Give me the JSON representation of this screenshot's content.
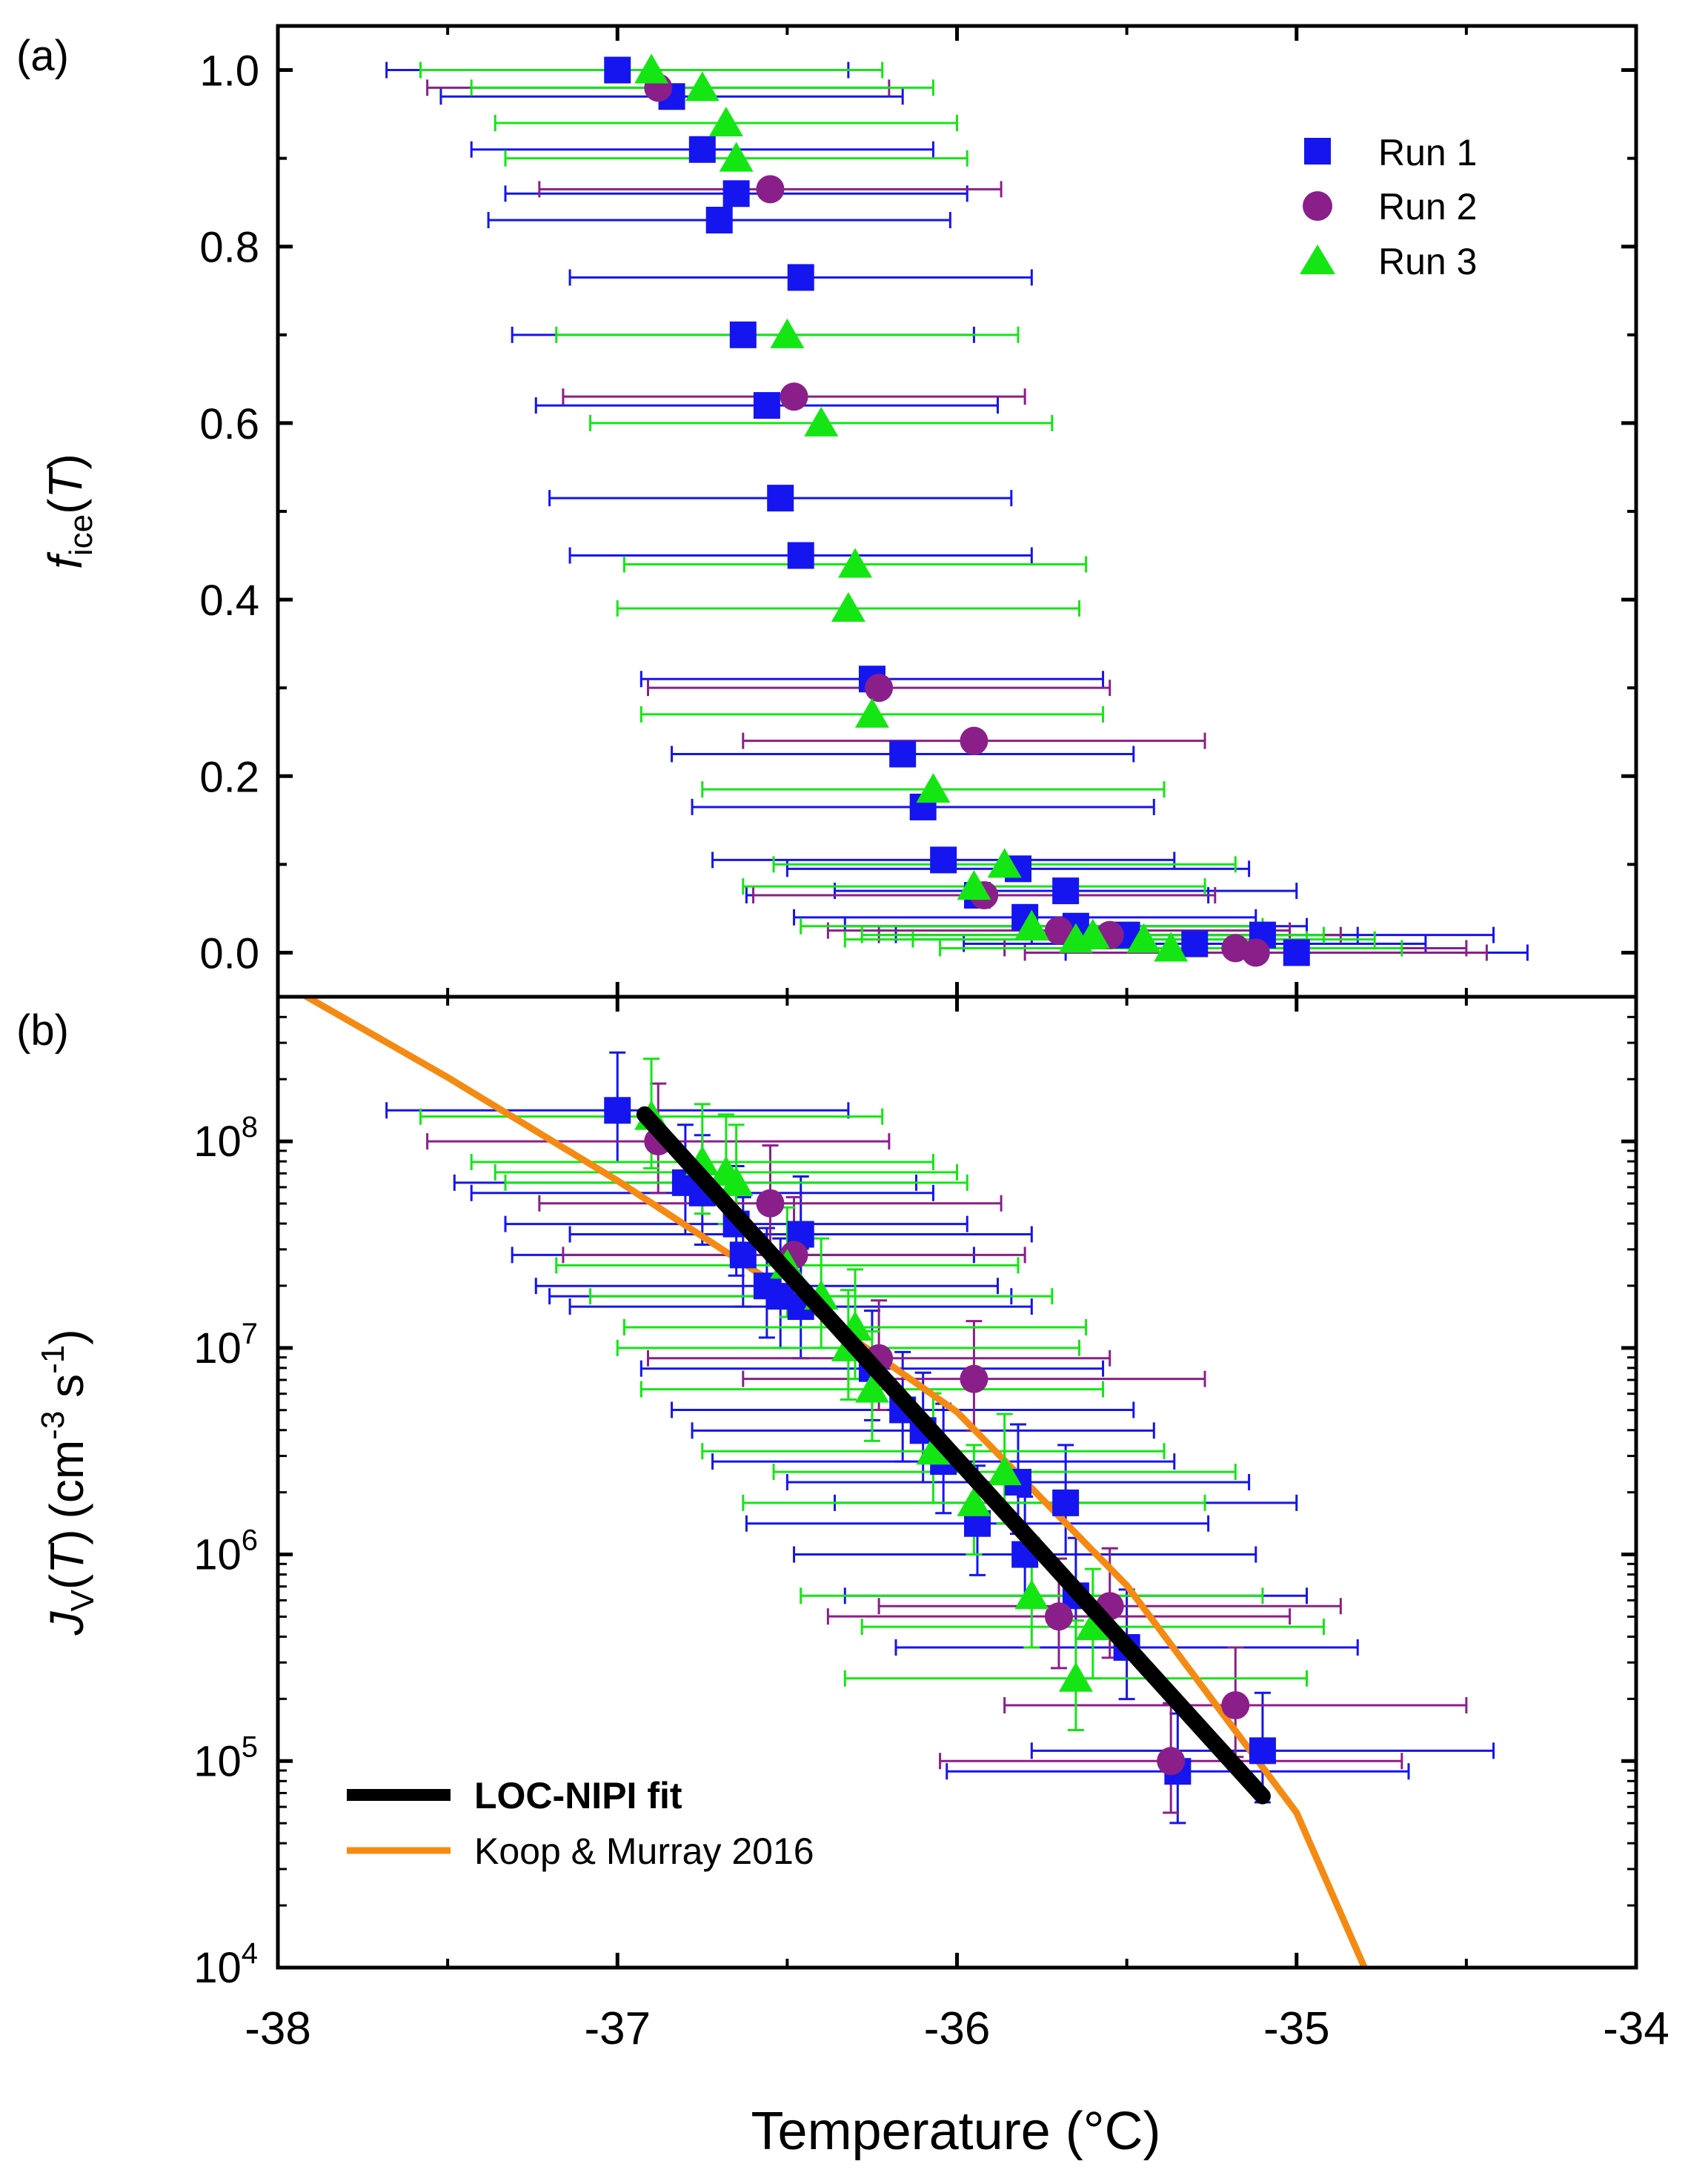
{
  "colors": {
    "run1": "#1515f0",
    "run2": "#8a1f8a",
    "run3": "#14e614",
    "fit": "#000000",
    "reference": "#f58a12",
    "axis": "#000000"
  },
  "chart_data": [
    {
      "panel_label": "(a)",
      "type": "scatter",
      "ylabel": {
        "base": "f",
        "sub": "ice",
        "paren_open": "(",
        "var": "T",
        "paren_close": ")"
      },
      "xlim": [
        -38,
        -34
      ],
      "ylim": [
        -0.05,
        1.05
      ],
      "yticks": [
        0.0,
        0.2,
        0.4,
        0.6,
        0.8,
        1.0
      ],
      "ytick_labels": [
        "0.0",
        "0.2",
        "0.4",
        "0.6",
        "0.8",
        "1.0"
      ],
      "legend": {
        "position": "top-right",
        "entries": [
          "Run 1",
          "Run 2",
          "Run 3"
        ]
      },
      "series": [
        {
          "name": "Run 1",
          "marker": "square",
          "points": [
            [
              -37.0,
              1.0
            ],
            [
              -36.84,
              0.97
            ],
            [
              -36.75,
              0.91
            ],
            [
              -36.65,
              0.86
            ],
            [
              -36.7,
              0.83
            ],
            [
              -36.46,
              0.765
            ],
            [
              -36.63,
              0.7
            ],
            [
              -36.56,
              0.62
            ],
            [
              -36.52,
              0.515
            ],
            [
              -36.46,
              0.45
            ],
            [
              -36.25,
              0.31
            ],
            [
              -36.16,
              0.225
            ],
            [
              -36.1,
              0.165
            ],
            [
              -36.04,
              0.105
            ],
            [
              -35.82,
              0.095
            ],
            [
              -35.94,
              0.065
            ],
            [
              -35.68,
              0.07
            ],
            [
              -35.8,
              0.04
            ],
            [
              -35.65,
              0.03
            ],
            [
              -35.5,
              0.02
            ],
            [
              -35.3,
              0.01
            ],
            [
              -35.1,
              0.02
            ],
            [
              -35.0,
              0.0
            ]
          ]
        },
        {
          "name": "Run 2",
          "marker": "circle",
          "points": [
            [
              -36.88,
              0.98
            ],
            [
              -36.55,
              0.865
            ],
            [
              -36.48,
              0.63
            ],
            [
              -36.23,
              0.3
            ],
            [
              -35.95,
              0.24
            ],
            [
              -35.92,
              0.065
            ],
            [
              -35.7,
              0.025
            ],
            [
              -35.55,
              0.02
            ],
            [
              -35.18,
              0.005
            ],
            [
              -35.12,
              0.0
            ]
          ]
        },
        {
          "name": "Run 3",
          "marker": "triangle",
          "points": [
            [
              -36.9,
              1.0
            ],
            [
              -36.75,
              0.98
            ],
            [
              -36.68,
              0.94
            ],
            [
              -36.65,
              0.9
            ],
            [
              -36.5,
              0.7
            ],
            [
              -36.4,
              0.6
            ],
            [
              -36.3,
              0.44
            ],
            [
              -36.32,
              0.39
            ],
            [
              -36.25,
              0.27
            ],
            [
              -36.07,
              0.185
            ],
            [
              -35.86,
              0.1
            ],
            [
              -35.95,
              0.075
            ],
            [
              -35.78,
              0.03
            ],
            [
              -35.65,
              0.015
            ],
            [
              -35.6,
              0.02
            ],
            [
              -35.45,
              0.015
            ],
            [
              -35.37,
              0.005
            ]
          ]
        }
      ]
    },
    {
      "panel_label": "(b)",
      "type": "scatter",
      "xlabel": "Temperature (°C)",
      "xlim": [
        -38,
        -34
      ],
      "xticks": [
        -38,
        -37,
        -36,
        -35,
        -34
      ],
      "xtick_labels": [
        "-38",
        "-37",
        "-36",
        "-35",
        "-34"
      ],
      "yscale": "log",
      "ylim_log10": [
        4,
        8.7
      ],
      "yticks_log10": [
        4,
        5,
        6,
        7,
        8
      ],
      "ytick_base": "10",
      "ytick_exponents": [
        "4",
        "5",
        "6",
        "7",
        "8"
      ],
      "ylabel": {
        "base": "J",
        "sub": "V",
        "paren_open": "(",
        "var": "T",
        "paren_close": ")",
        "unit_open": "(cm",
        "unit_exp1": "-3",
        "unit_mid": " s",
        "unit_exp2": "-1",
        "unit_close": ")"
      },
      "legend": {
        "position": "bottom-left",
        "entries": [
          "LOC-NIPI fit",
          "Koop & Murray 2016"
        ]
      },
      "series": [
        {
          "name": "Run 1",
          "marker": "square",
          "log10_points": [
            [
              -37.0,
              8.15
            ],
            [
              -36.8,
              7.8
            ],
            [
              -36.75,
              7.75
            ],
            [
              -36.65,
              7.6
            ],
            [
              -36.46,
              7.55
            ],
            [
              -36.63,
              7.45
            ],
            [
              -36.56,
              7.3
            ],
            [
              -36.52,
              7.25
            ],
            [
              -36.46,
              7.2
            ],
            [
              -36.25,
              6.9
            ],
            [
              -36.16,
              6.7
            ],
            [
              -36.1,
              6.6
            ],
            [
              -36.04,
              6.45
            ],
            [
              -35.82,
              6.35
            ],
            [
              -35.68,
              6.25
            ],
            [
              -35.94,
              6.15
            ],
            [
              -35.8,
              6.0
            ],
            [
              -35.65,
              5.8
            ],
            [
              -35.5,
              5.55
            ],
            [
              -35.35,
              4.95
            ],
            [
              -35.1,
              5.05
            ]
          ]
        },
        {
          "name": "Run 2",
          "marker": "circle",
          "log10_points": [
            [
              -36.88,
              8.0
            ],
            [
              -36.55,
              7.7
            ],
            [
              -36.48,
              7.45
            ],
            [
              -36.23,
              6.95
            ],
            [
              -35.95,
              6.85
            ],
            [
              -35.7,
              5.7
            ],
            [
              -35.55,
              5.75
            ],
            [
              -35.18,
              5.27
            ],
            [
              -35.37,
              5.0
            ]
          ]
        },
        {
          "name": "Run 3",
          "marker": "triangle",
          "log10_points": [
            [
              -36.9,
              8.12
            ],
            [
              -36.75,
              7.9
            ],
            [
              -36.68,
              7.85
            ],
            [
              -36.65,
              7.8
            ],
            [
              -36.5,
              7.4
            ],
            [
              -36.4,
              7.25
            ],
            [
              -36.3,
              7.1
            ],
            [
              -36.32,
              7.0
            ],
            [
              -36.25,
              6.8
            ],
            [
              -36.07,
              6.5
            ],
            [
              -35.86,
              6.4
            ],
            [
              -35.95,
              6.25
            ],
            [
              -35.78,
              5.8
            ],
            [
              -35.6,
              5.65
            ],
            [
              -35.65,
              5.4
            ]
          ]
        },
        {
          "name": "LOC-NIPI fit",
          "type": "line",
          "log10_points": [
            [
              -36.92,
              8.13
            ],
            [
              -35.1,
              4.83
            ]
          ]
        },
        {
          "name": "Koop & Murray 2016",
          "type": "line",
          "log10_points": [
            [
              -38.0,
              8.78
            ],
            [
              -37.5,
              8.31
            ],
            [
              -37.0,
              7.81
            ],
            [
              -36.5,
              7.27
            ],
            [
              -36.0,
              6.69
            ],
            [
              -35.5,
              5.85
            ],
            [
              -35.0,
              4.75
            ],
            [
              -34.8,
              4.0
            ]
          ]
        }
      ]
    }
  ]
}
